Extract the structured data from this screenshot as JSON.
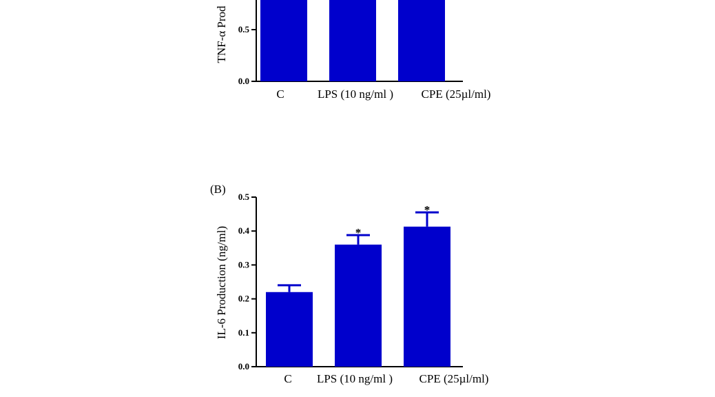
{
  "colors": {
    "bar": "#0000CC",
    "axis": "#000000"
  },
  "chart_data": [
    {
      "type": "bar",
      "panel_label": "",
      "title": "",
      "ylabel": "TNF-α Prod",
      "xlabel": "",
      "categories": [
        "C",
        "LPS (10 ng/ml )",
        "CPE (25µl/ml)"
      ],
      "values": [
        0.88,
        0.88,
        0.88
      ],
      "errors": [
        0,
        0,
        0
      ],
      "significance": [
        "",
        "",
        ""
      ],
      "yticks": [
        0.0,
        0.5
      ],
      "ytick_labels": [
        "0.0",
        "0.5"
      ],
      "ylim": [
        0.0,
        0.72
      ],
      "grid": false,
      "legend": "none"
    },
    {
      "type": "bar",
      "panel_label": "(B)",
      "title": "",
      "ylabel": "IL-6 Production (ng/ml)",
      "xlabel": "",
      "categories": [
        "C",
        "LPS (10 ng/ml )",
        "CPE (25µl/ml)"
      ],
      "values": [
        0.22,
        0.36,
        0.413
      ],
      "errors": [
        0.02,
        0.028,
        0.042
      ],
      "significance": [
        "",
        "*",
        "*"
      ],
      "yticks": [
        0.0,
        0.1,
        0.2,
        0.3,
        0.4,
        0.5
      ],
      "ytick_labels": [
        "0.0",
        "0.1",
        "0.2",
        "0.3",
        "0.4",
        "0.5"
      ],
      "ylim": [
        0.0,
        0.5
      ],
      "grid": false,
      "legend": "none"
    }
  ]
}
